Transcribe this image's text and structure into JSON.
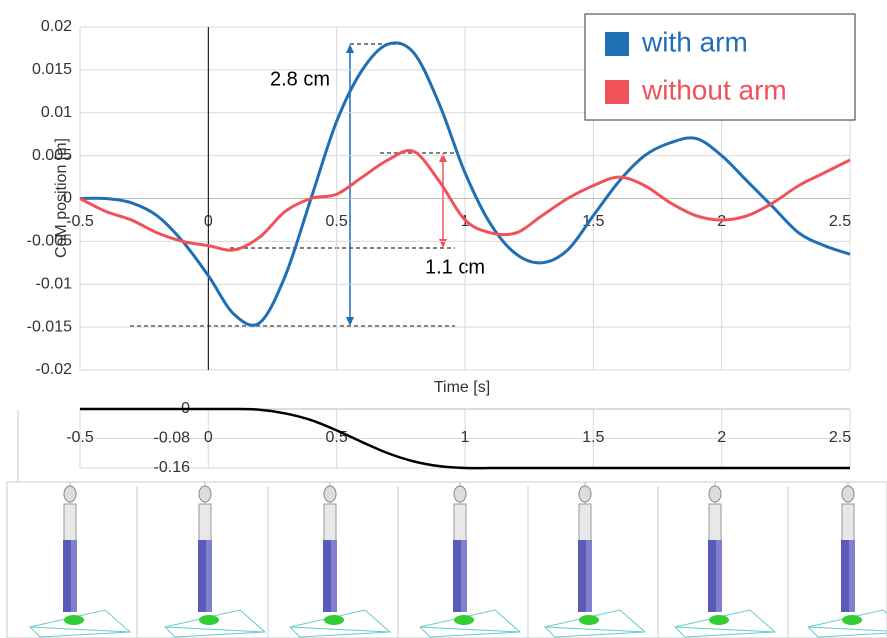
{
  "chart_data": [
    {
      "type": "line",
      "x_label": "Time [s]",
      "y_label": "CoM position [m]",
      "x": [
        -0.5,
        -0.4,
        -0.3,
        -0.2,
        -0.1,
        0,
        0.1,
        0.2,
        0.3,
        0.4,
        0.5,
        0.6,
        0.7,
        0.8,
        0.9,
        1,
        1.1,
        1.2,
        1.3,
        1.4,
        1.5,
        1.6,
        1.7,
        1.8,
        1.9,
        2,
        2.1,
        2.2,
        2.3,
        2.4,
        2.5
      ],
      "series": [
        {
          "name": "with arm",
          "color": "#1f6fb5",
          "values": [
            0,
            0,
            -0.0005,
            -0.002,
            -0.005,
            -0.009,
            -0.0135,
            -0.0145,
            -0.009,
            0,
            0.009,
            0.015,
            0.018,
            0.017,
            0.011,
            0.003,
            -0.003,
            -0.0065,
            -0.0075,
            -0.006,
            -0.002,
            0.002,
            0.005,
            0.0065,
            0.007,
            0.005,
            0.002,
            -0.001,
            -0.004,
            -0.0055,
            -0.0065
          ]
        },
        {
          "name": "without arm",
          "color": "#f0525a",
          "values": [
            0,
            -0.0015,
            -0.0025,
            -0.004,
            -0.005,
            -0.0055,
            -0.006,
            -0.0045,
            -0.0015,
            0,
            0.0005,
            0.0025,
            0.0045,
            0.0055,
            0.002,
            -0.0025,
            -0.004,
            -0.004,
            -0.002,
            0,
            0.0015,
            0.0025,
            0.0015,
            -0.0005,
            -0.002,
            -0.0025,
            -0.002,
            -0.0005,
            0.0015,
            0.003,
            0.0045
          ]
        }
      ],
      "xlim": [
        -0.5,
        2.5
      ],
      "xticks": [
        -0.5,
        0,
        0.5,
        1,
        1.5,
        2,
        2.5
      ],
      "ylim": [
        -0.02,
        0.02
      ],
      "yticks": [
        -0.02,
        -0.015,
        -0.01,
        -0.005,
        0,
        0.005,
        0.01,
        0.015,
        0.02
      ],
      "grid": true,
      "legend": "top-right",
      "annotations": [
        "2.8 cm",
        "1.1 cm"
      ]
    },
    {
      "type": "line",
      "x": [
        -0.5,
        -0.4,
        -0.3,
        -0.2,
        -0.1,
        0,
        0.1,
        0.2,
        0.3,
        0.4,
        0.5,
        0.6,
        0.7,
        0.8,
        0.9,
        1,
        1.1,
        1.2,
        1.3,
        1.4,
        1.5,
        1.6,
        1.7,
        1.8,
        1.9,
        2,
        2.1,
        2.2,
        2.3,
        2.4,
        2.5
      ],
      "series": [
        {
          "color": "#000000",
          "values": [
            0,
            0,
            0,
            0,
            0,
            0,
            0,
            -0.002,
            -0.012,
            -0.03,
            -0.058,
            -0.09,
            -0.12,
            -0.142,
            -0.155,
            -0.16,
            -0.16,
            -0.16,
            -0.16,
            -0.16,
            -0.16,
            -0.16,
            -0.16,
            -0.16,
            -0.16,
            -0.16,
            -0.16,
            -0.16,
            -0.16,
            -0.16,
            -0.16
          ]
        }
      ],
      "xlim": [
        -0.5,
        2.5
      ],
      "xticks": [
        -0.5,
        0,
        0.5,
        1,
        1.5,
        2,
        2.5
      ],
      "ylim": [
        -0.16,
        0
      ],
      "yticks": [
        0,
        -0.08,
        -0.16
      ],
      "grid": true
    }
  ]
}
